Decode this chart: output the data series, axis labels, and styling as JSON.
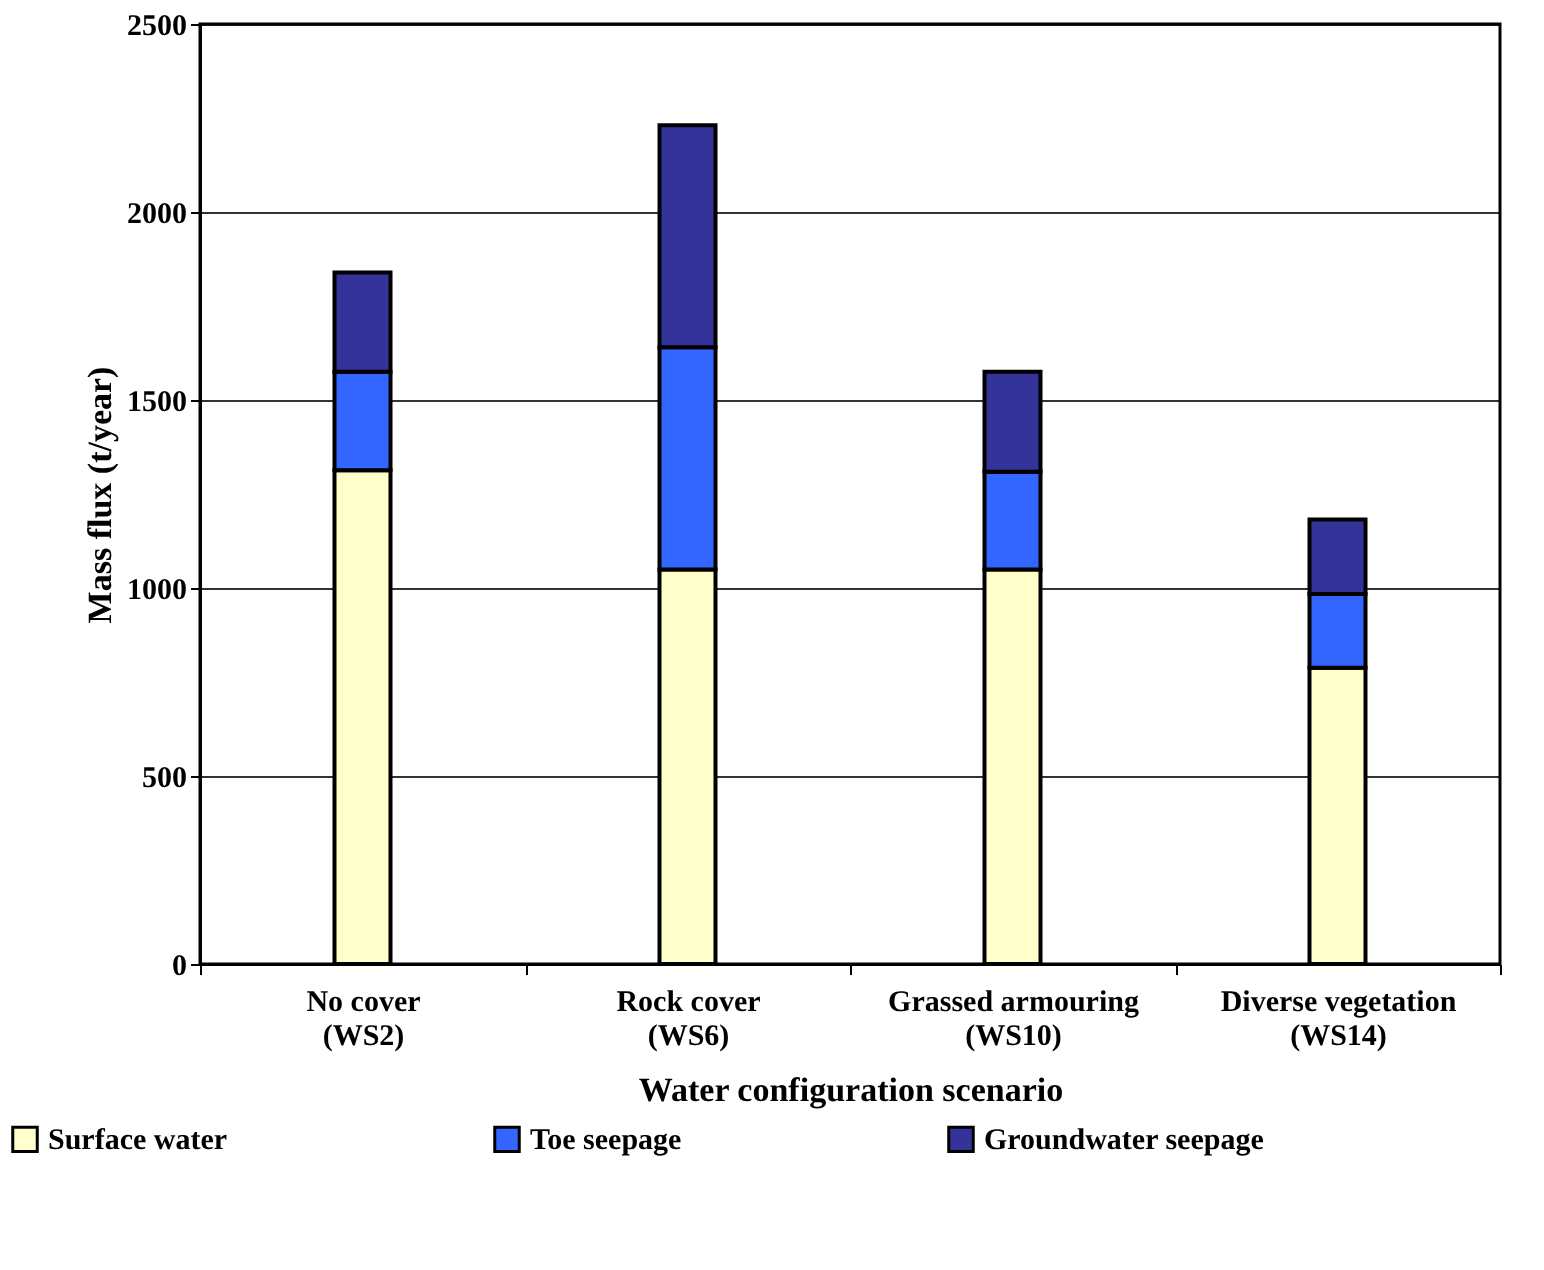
{
  "chart_data": {
    "type": "bar",
    "stacked": true,
    "categories": [
      "No cover\n(WS2)",
      "Rock cover\n(WS6)",
      "Grassed armouring\n(WS10)",
      "Diverse vegetation\n(WS14)"
    ],
    "series": [
      {
        "name": "Surface water",
        "color": "#ffffcc",
        "values": [
          1313,
          1049,
          1049,
          788
        ]
      },
      {
        "name": "Toe seepage",
        "color": "#3366ff",
        "values": [
          262,
          591,
          260,
          196
        ]
      },
      {
        "name": "Groundwater seepage",
        "color": "#333399",
        "values": [
          264,
          591,
          266,
          198
        ]
      }
    ],
    "xlabel": "Water configuration scenario",
    "ylabel": "Mass flux (t/year)",
    "ylim": [
      0,
      2500
    ],
    "yticks": [
      0,
      500,
      1000,
      1500,
      2000,
      2500
    ],
    "grid": "y",
    "legend": "bottom left"
  }
}
